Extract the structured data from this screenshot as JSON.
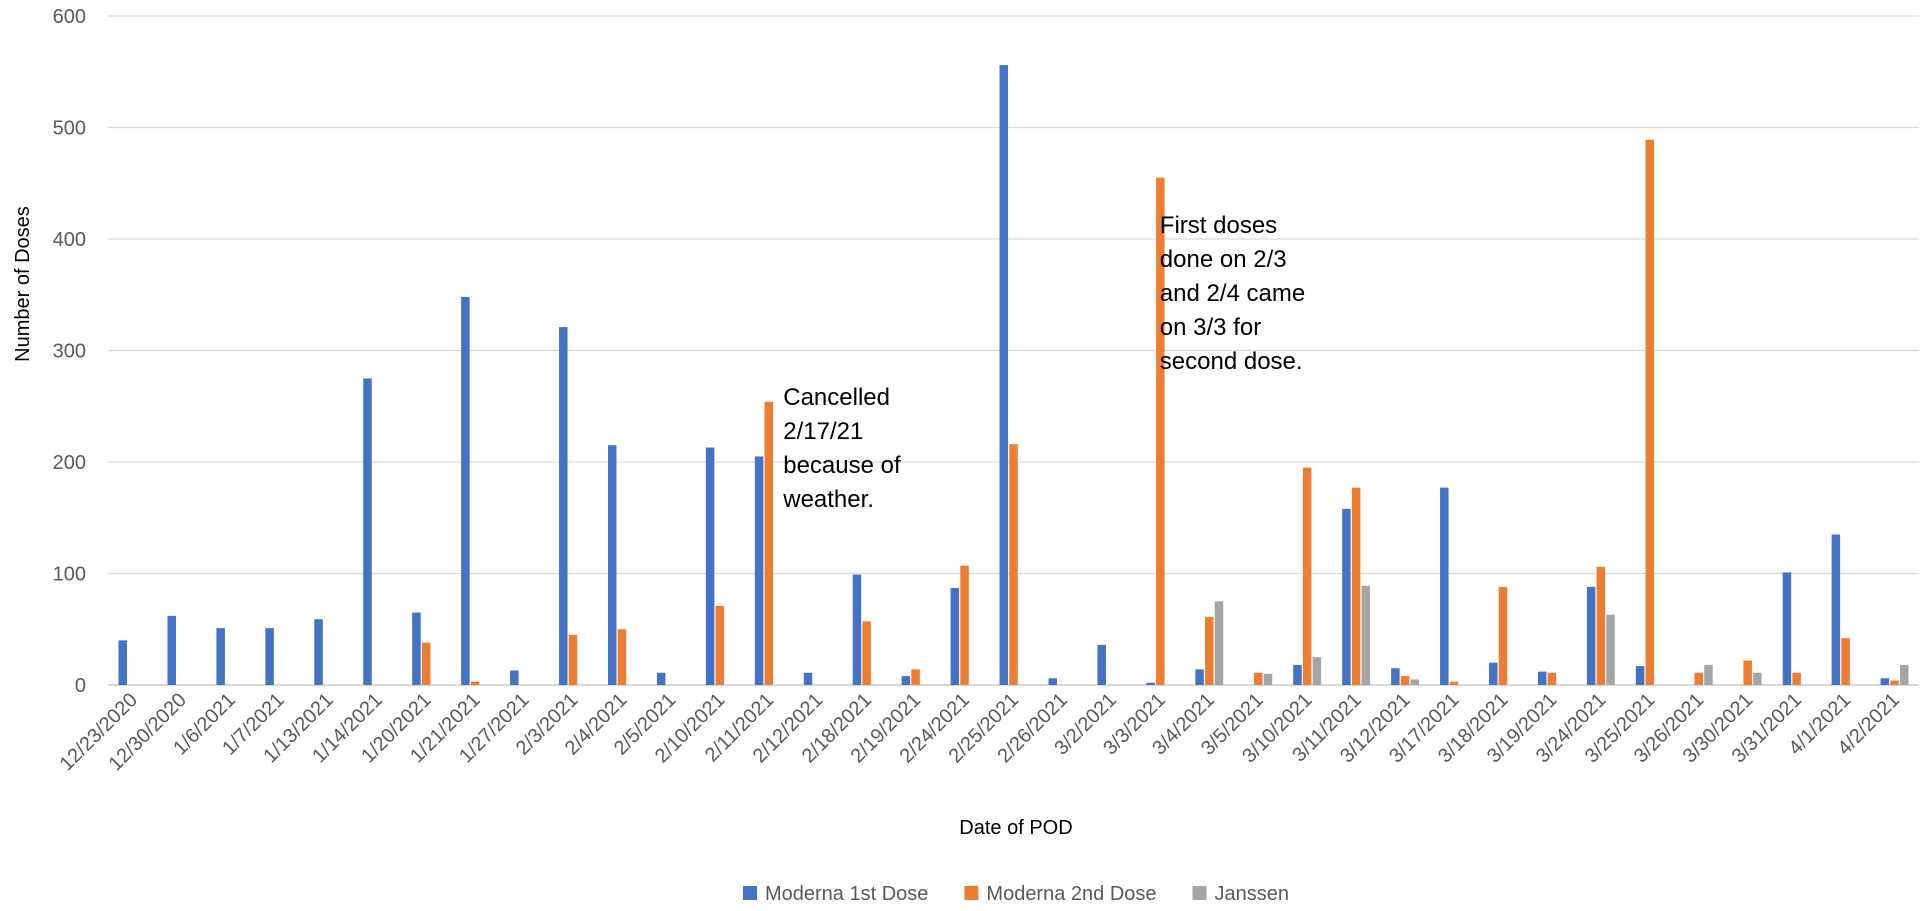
{
  "chart_data": {
    "type": "bar",
    "title": "",
    "xlabel": "Date of POD",
    "ylabel": "Number of Doses",
    "ylim": [
      0,
      600
    ],
    "yticks": [
      0,
      100,
      200,
      300,
      400,
      500,
      600
    ],
    "grid": true,
    "legend_position": "bottom",
    "categories": [
      "12/23/2020",
      "12/30/2020",
      "1/6/2021",
      "1/7/2021",
      "1/13/2021",
      "1/14/2021",
      "1/20/2021",
      "1/21/2021",
      "1/27/2021",
      "2/3/2021",
      "2/4/2021",
      "2/5/2021",
      "2/10/2021",
      "2/11/2021",
      "2/12/2021",
      "2/18/2021",
      "2/19/2021",
      "2/24/2021",
      "2/25/2021",
      "2/26/2021",
      "3/2/2021",
      "3/3/2021",
      "3/4/2021",
      "3/5/2021",
      "3/10/2021",
      "3/11/2021",
      "3/12/2021",
      "3/17/2021",
      "3/18/2021",
      "3/19/2021",
      "3/24/2021",
      "3/25/2021",
      "3/26/2021",
      "3/30/2021",
      "3/31/2021",
      "4/1/2021",
      "4/2/2021"
    ],
    "series": [
      {
        "name": "Moderna 1st Dose",
        "color": "#4472C4",
        "values": [
          40,
          62,
          51,
          51,
          59,
          275,
          65,
          348,
          13,
          321,
          215,
          11,
          213,
          205,
          11,
          99,
          8,
          87,
          556,
          6,
          36,
          2,
          14,
          0,
          18,
          158,
          15,
          177,
          20,
          12,
          88,
          17,
          0,
          0,
          101,
          135,
          6
        ]
      },
      {
        "name": "Moderna 2nd Dose",
        "color": "#ED7D31",
        "values": [
          0,
          0,
          0,
          0,
          0,
          0,
          38,
          3,
          0,
          45,
          50,
          0,
          71,
          254,
          0,
          57,
          14,
          107,
          216,
          0,
          0,
          455,
          61,
          11,
          195,
          177,
          8,
          3,
          88,
          11,
          106,
          489,
          11,
          22,
          11,
          42,
          4
        ]
      },
      {
        "name": "Janssen",
        "color": "#A5A5A5",
        "values": [
          0,
          0,
          0,
          0,
          0,
          0,
          0,
          0,
          0,
          0,
          0,
          0,
          0,
          0,
          0,
          0,
          0,
          0,
          0,
          0,
          0,
          0,
          75,
          10,
          25,
          89,
          5,
          0,
          0,
          0,
          63,
          0,
          18,
          11,
          0,
          0,
          18
        ]
      }
    ],
    "annotations": [
      {
        "id": "cancelled",
        "anchor_category": "2/12/2021",
        "lines": [
          "Cancelled",
          "2/17/21",
          "because of",
          "weather."
        ]
      },
      {
        "id": "first-doses",
        "anchor_category": "3/4/2021",
        "lines": [
          "First doses",
          "done on 2/3",
          "and 2/4 came",
          "on 3/3 for",
          "second dose."
        ]
      }
    ]
  }
}
